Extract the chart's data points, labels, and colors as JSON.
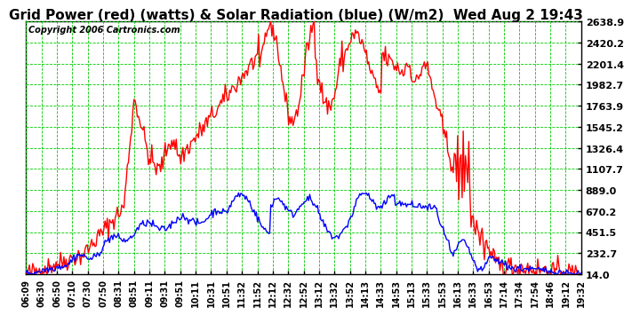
{
  "title": "Grid Power (red) (watts) & Solar Radiation (blue) (W/m2)  Wed Aug 2 19:43",
  "copyright": "Copyright 2006 Cartronics.com",
  "background_color": "#ffffff",
  "plot_bg_color": "#ffffff",
  "grid_color": "#00cc00",
  "y_ticks": [
    14.0,
    232.7,
    451.5,
    670.2,
    889.0,
    1107.7,
    1326.4,
    1545.2,
    1763.9,
    1982.7,
    2201.4,
    2420.2,
    2638.9
  ],
  "x_labels": [
    "06:09",
    "06:30",
    "06:50",
    "07:10",
    "07:30",
    "07:50",
    "08:31",
    "08:51",
    "09:11",
    "09:31",
    "09:51",
    "10:11",
    "10:31",
    "10:51",
    "11:32",
    "11:52",
    "12:12",
    "12:32",
    "12:52",
    "13:12",
    "13:32",
    "13:52",
    "14:13",
    "14:33",
    "14:53",
    "15:13",
    "15:33",
    "15:53",
    "16:13",
    "16:33",
    "16:53",
    "17:14",
    "17:34",
    "17:54",
    "18:46",
    "19:12",
    "19:32"
  ],
  "ymin": 14.0,
  "ymax": 2638.9,
  "red_color": "#ff0000",
  "blue_color": "#0000ff",
  "line_width": 1.0,
  "title_fontsize": 11,
  "copyright_fontsize": 7,
  "tick_fontsize": 7,
  "ytick_fontsize": 8,
  "border_color": "#000000"
}
